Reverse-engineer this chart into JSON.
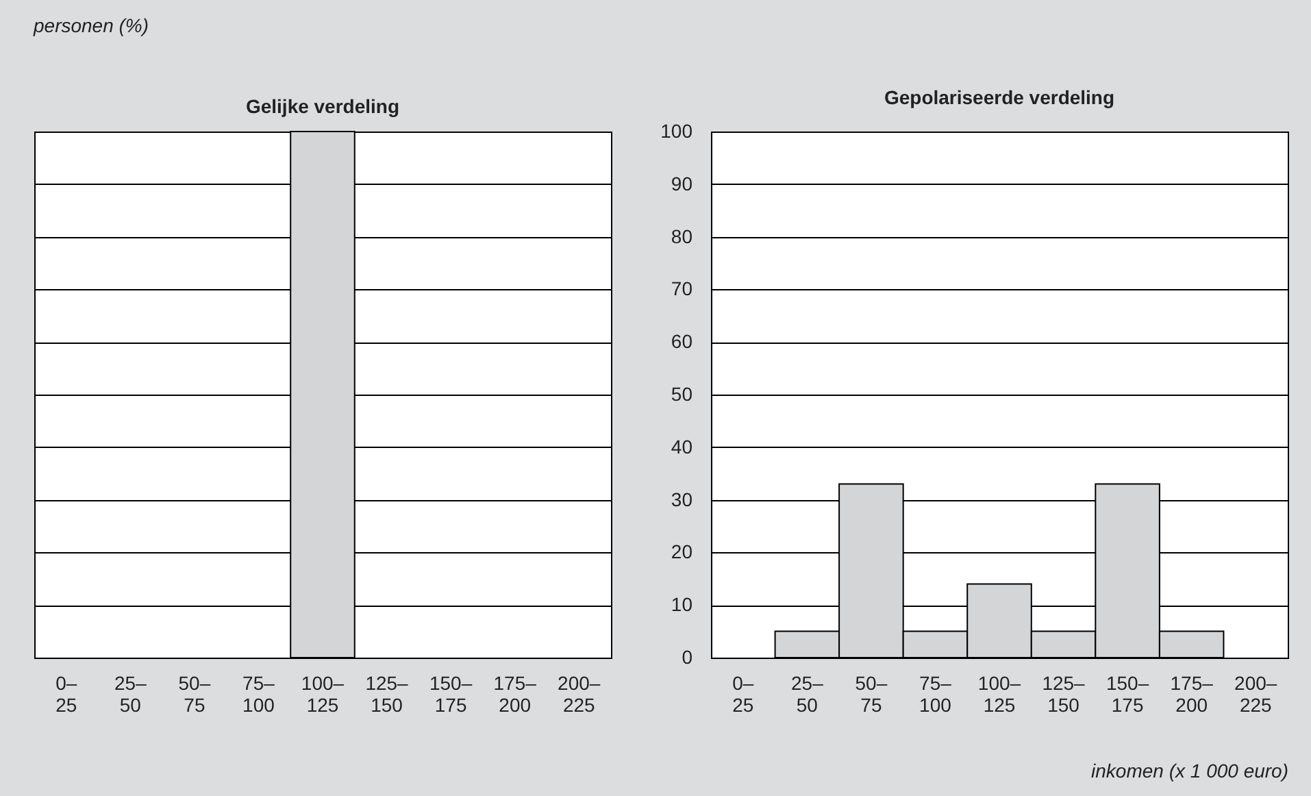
{
  "chart_data": [
    {
      "type": "bar",
      "title": "Gelijke verdeling",
      "ylabel": "personen (%)",
      "categories": [
        "0–25",
        "25–50",
        "50–75",
        "75–100",
        "100–125",
        "125–150",
        "150–175",
        "175–200",
        "200–225"
      ],
      "values": [
        0,
        0,
        0,
        0,
        100,
        0,
        0,
        0,
        0
      ],
      "color": "#d4d5d7",
      "ylim": [
        0,
        100
      ],
      "yticks": [
        0,
        10,
        20,
        30,
        40,
        50,
        60,
        70,
        80,
        90,
        100
      ],
      "grid": "y",
      "tick_labels": "x"
    },
    {
      "type": "bar",
      "title": "Gepolariseerde verdeling",
      "xlabel": "inkomen (x 1 000 euro)",
      "categories": [
        "0–25",
        "25–50",
        "50–75",
        "75–100",
        "100–125",
        "125–150",
        "150–175",
        "175–200",
        "200–225"
      ],
      "values": [
        0,
        5,
        33,
        5,
        14,
        5,
        33,
        5,
        0
      ],
      "color": "#d4d5d7",
      "ylim": [
        0,
        100
      ],
      "yticks": [
        0,
        10,
        20,
        30,
        40,
        50,
        60,
        70,
        80,
        90,
        100
      ],
      "grid": "y"
    }
  ]
}
